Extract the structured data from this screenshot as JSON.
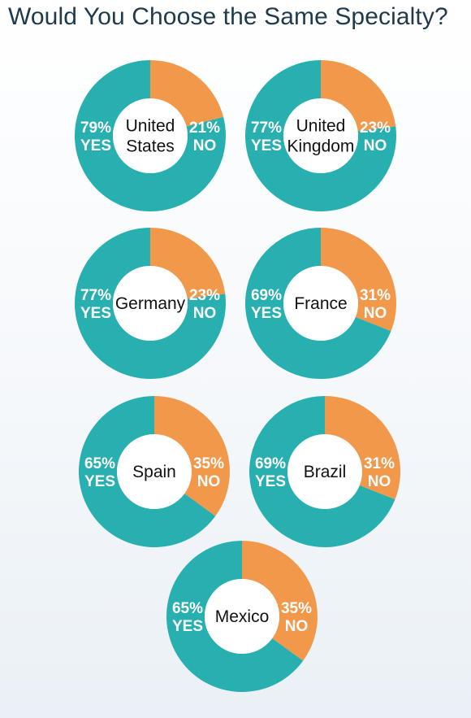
{
  "title": "Would You Choose the Same Specialty?",
  "colors": {
    "yes": "#28b0b0",
    "no": "#f2984a",
    "center": "#ffffff",
    "title": "#1f3a4c"
  },
  "chart_data": {
    "type": "pie",
    "variant": "donut",
    "title": "Would You Choose the Same Specialty?",
    "categories": [
      "YES",
      "NO"
    ],
    "charts": [
      {
        "name_lines": [
          "United",
          "States"
        ],
        "yes": 79,
        "no": 21,
        "yes_label": "79%",
        "no_label": "21%"
      },
      {
        "name_lines": [
          "United",
          "Kingdom"
        ],
        "yes": 77,
        "no": 23,
        "yes_label": "77%",
        "no_label": "23%"
      },
      {
        "name_lines": [
          "Germany"
        ],
        "yes": 77,
        "no": 23,
        "yes_label": "77%",
        "no_label": "23%"
      },
      {
        "name_lines": [
          "France"
        ],
        "yes": 69,
        "no": 31,
        "yes_label": "69%",
        "no_label": "31%"
      },
      {
        "name_lines": [
          "Spain"
        ],
        "yes": 65,
        "no": 35,
        "yes_label": "65%",
        "no_label": "35%"
      },
      {
        "name_lines": [
          "Brazil"
        ],
        "yes": 69,
        "no": 31,
        "yes_label": "69%",
        "no_label": "31%"
      },
      {
        "name_lines": [
          "Mexico"
        ],
        "yes": 65,
        "no": 35,
        "yes_label": "65%",
        "no_label": "35%"
      }
    ],
    "yes_word": "YES",
    "no_word": "NO"
  }
}
